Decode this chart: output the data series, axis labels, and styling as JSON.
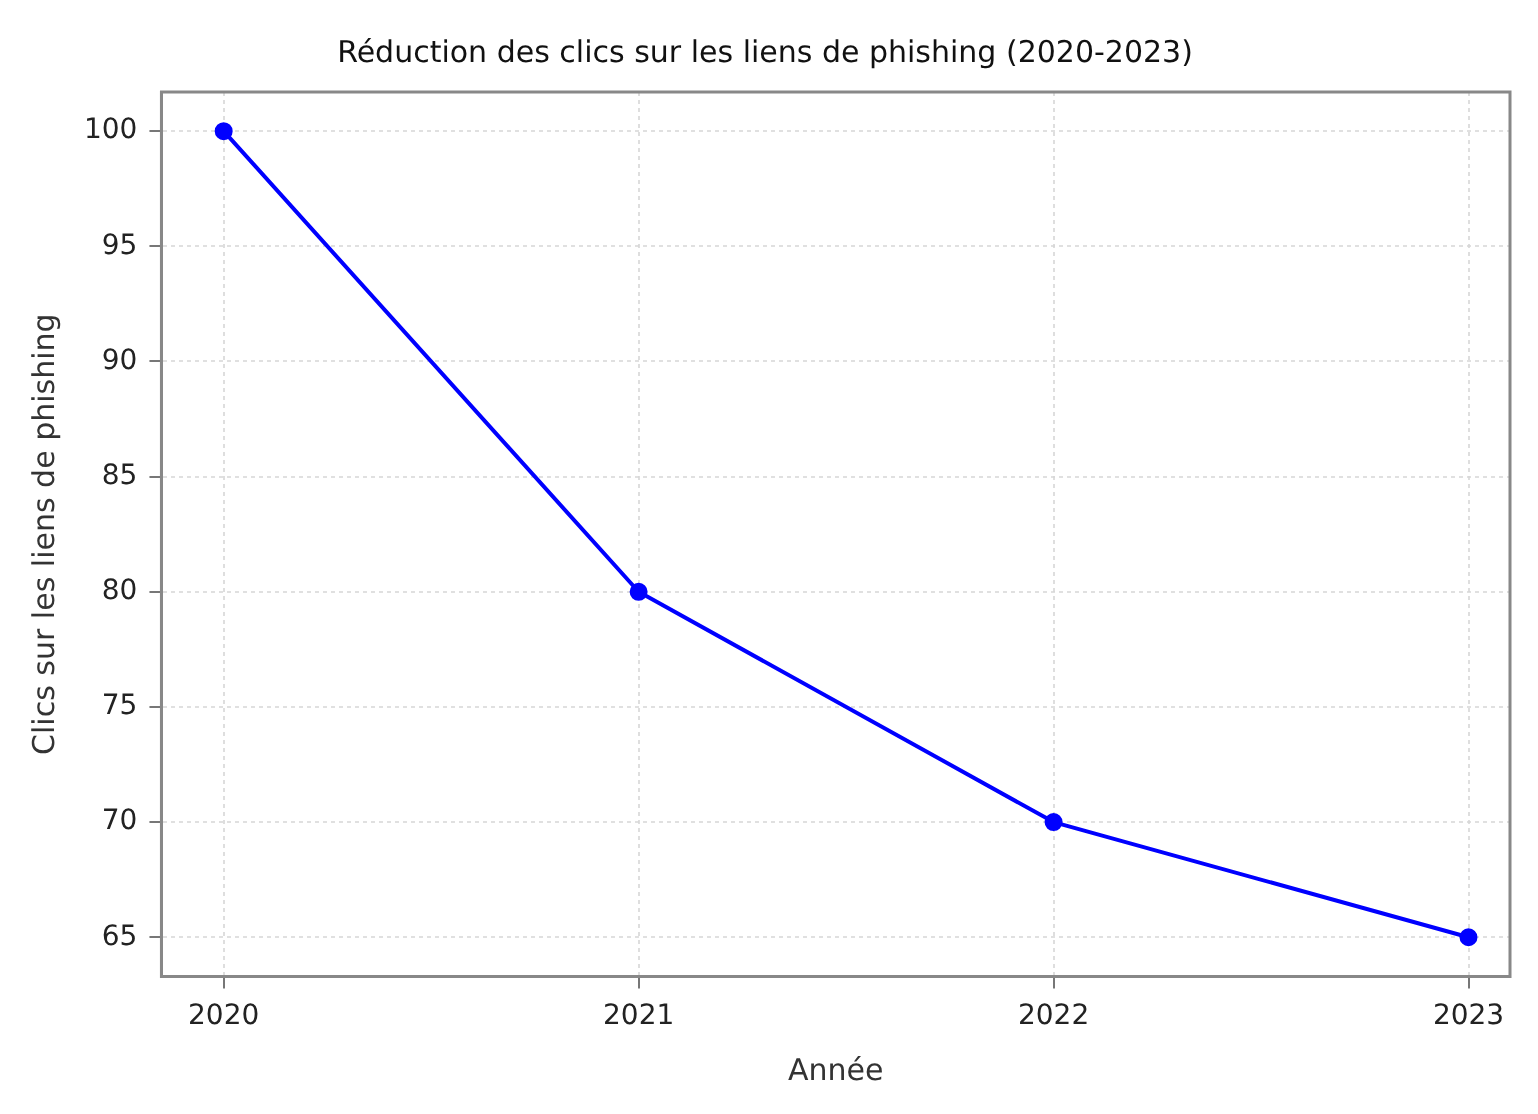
{
  "chart_data": {
    "type": "line",
    "title": "Réduction des clics sur les liens de phishing (2020-2023)",
    "xlabel": "Année",
    "ylabel": "Clics sur les liens de phishing",
    "x": [
      2020,
      2021,
      2022,
      2023
    ],
    "series": [
      {
        "color": "#0000ff",
        "values": [
          100,
          80,
          70,
          65
        ]
      }
    ],
    "xlim": [
      2019.85,
      2023.1
    ],
    "xticks": [
      2020,
      2021,
      2022,
      2023
    ],
    "ylim": [
      63.3,
      101.7
    ],
    "yticks": [
      65,
      70,
      75,
      80,
      85,
      90,
      95,
      100
    ],
    "grid": true,
    "legend": false,
    "marker": "circle",
    "line_style": "solid"
  }
}
